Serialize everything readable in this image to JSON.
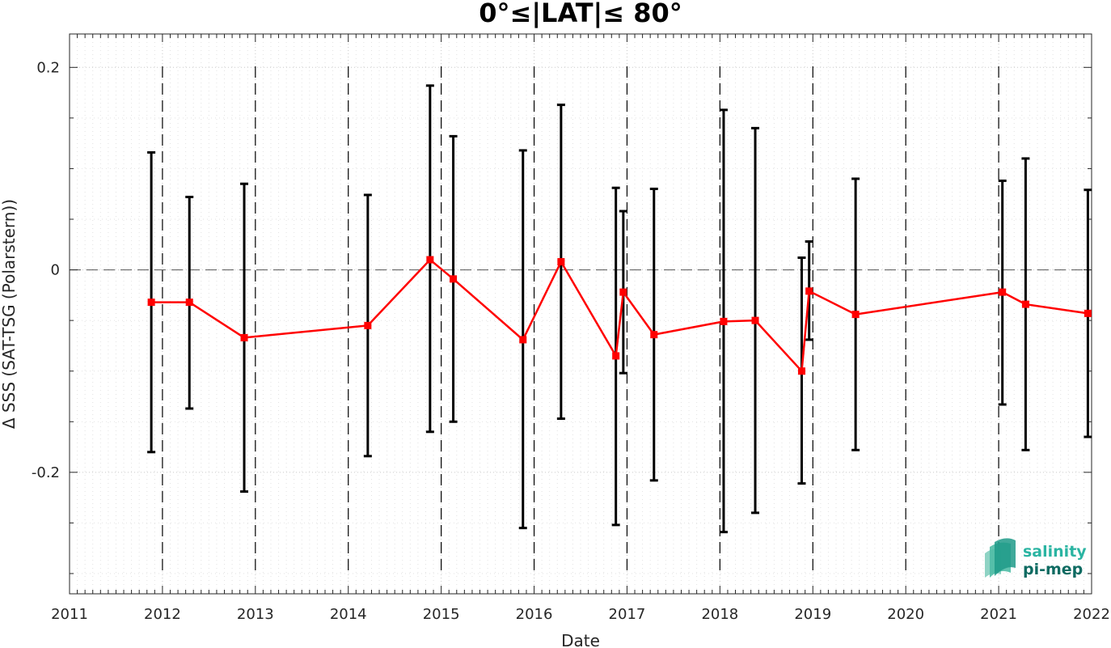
{
  "chart_data": {
    "type": "line",
    "title": "0°≤|LAT|≤ 80°",
    "xlabel": "Date",
    "ylabel": "Δ SSS (SAT-TSG (Polarstern))",
    "xlim": [
      2011,
      2022
    ],
    "ylim": [
      -0.32,
      0.233
    ],
    "x_ticks": [
      2011,
      2012,
      2013,
      2014,
      2015,
      2016,
      2017,
      2018,
      2019,
      2020,
      2021,
      2022
    ],
    "y_ticks": [
      -0.2,
      0,
      0.2
    ],
    "y_tick_labels": [
      "-0.2",
      "0",
      "0.2"
    ],
    "grid": true,
    "minor_grid": true,
    "zero_line": "dashed",
    "year_boundary_lines": [
      2012,
      2013,
      2014,
      2015,
      2016,
      2017,
      2018,
      2019,
      2020,
      2021
    ],
    "series": [
      {
        "marker": "square",
        "color": "#ff0000",
        "error_bar_color": "#000000",
        "points": [
          {
            "x": 2011.88,
            "y": -0.032,
            "err_low": -0.18,
            "err_high": 0.116
          },
          {
            "x": 2012.29,
            "y": -0.032,
            "err_low": -0.137,
            "err_high": 0.072
          },
          {
            "x": 2012.88,
            "y": -0.067,
            "err_low": -0.219,
            "err_high": 0.085
          },
          {
            "x": 2014.21,
            "y": -0.055,
            "err_low": -0.184,
            "err_high": 0.074
          },
          {
            "x": 2014.88,
            "y": 0.01,
            "err_low": -0.16,
            "err_high": 0.182
          },
          {
            "x": 2015.13,
            "y": -0.009,
            "err_low": -0.15,
            "err_high": 0.132
          },
          {
            "x": 2015.88,
            "y": -0.069,
            "err_low": -0.255,
            "err_high": 0.118
          },
          {
            "x": 2016.29,
            "y": 0.008,
            "err_low": -0.147,
            "err_high": 0.163
          },
          {
            "x": 2016.88,
            "y": -0.085,
            "err_low": -0.252,
            "err_high": 0.081
          },
          {
            "x": 2016.96,
            "y": -0.022,
            "err_low": -0.102,
            "err_high": 0.058
          },
          {
            "x": 2017.29,
            "y": -0.064,
            "err_low": -0.208,
            "err_high": 0.08
          },
          {
            "x": 2018.04,
            "y": -0.051,
            "err_low": -0.259,
            "err_high": 0.158
          },
          {
            "x": 2018.38,
            "y": -0.05,
            "err_low": -0.24,
            "err_high": 0.14
          },
          {
            "x": 2018.88,
            "y": -0.1,
            "err_low": -0.211,
            "err_high": 0.012
          },
          {
            "x": 2018.96,
            "y": -0.021,
            "err_low": -0.069,
            "err_high": 0.028
          },
          {
            "x": 2019.46,
            "y": -0.044,
            "err_low": -0.178,
            "err_high": 0.09
          },
          {
            "x": 2021.04,
            "y": -0.022,
            "err_low": -0.133,
            "err_high": 0.088
          },
          {
            "x": 2021.29,
            "y": -0.034,
            "err_low": -0.178,
            "err_high": 0.11
          },
          {
            "x": 2021.96,
            "y": -0.043,
            "err_low": -0.165,
            "err_high": 0.079
          }
        ]
      }
    ]
  },
  "logo": {
    "line1": "salinity",
    "line2": "pi-mep",
    "line1_color": "#2ab4a2",
    "line2_color": "#0e6b62"
  },
  "colors": {
    "series": "#ff0000",
    "error_bars": "#000000",
    "axes": "#262626",
    "grid": "#c8c8c8"
  }
}
